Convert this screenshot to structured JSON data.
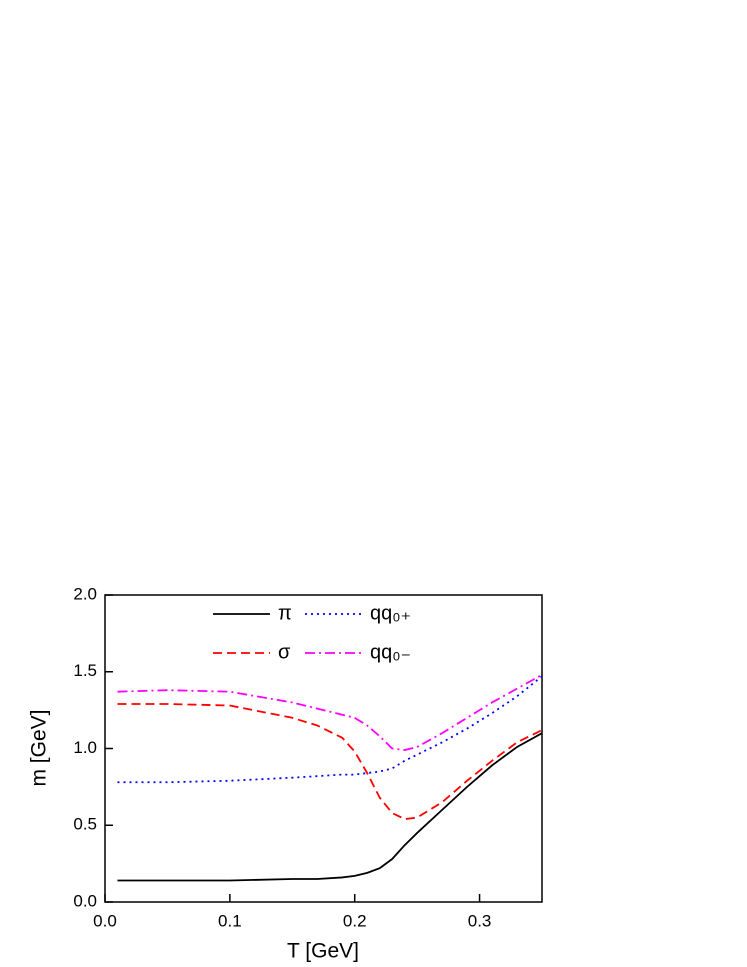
{
  "chart_data": {
    "type": "line",
    "xlabel": "T [GeV]",
    "ylabel": "m [GeV]",
    "x": [
      0.01,
      0.05,
      0.1,
      0.15,
      0.17,
      0.19,
      0.2,
      0.21,
      0.22,
      0.23,
      0.24,
      0.25,
      0.27,
      0.29,
      0.31,
      0.33,
      0.35
    ],
    "series": [
      {
        "name": "π",
        "color": "#000000",
        "dash": "solid",
        "values": [
          0.14,
          0.14,
          0.14,
          0.15,
          0.15,
          0.16,
          0.17,
          0.19,
          0.22,
          0.28,
          0.37,
          0.45,
          0.6,
          0.75,
          0.89,
          1.01,
          1.1
        ]
      },
      {
        "name": "σ",
        "color": "#ff0000",
        "dash": "dashed",
        "values": [
          1.29,
          1.29,
          1.28,
          1.2,
          1.15,
          1.07,
          0.98,
          0.84,
          0.68,
          0.58,
          0.54,
          0.55,
          0.65,
          0.79,
          0.92,
          1.04,
          1.12
        ]
      },
      {
        "name": "qq₀₊",
        "color": "#0000ff",
        "dash": "dotted",
        "values": [
          0.78,
          0.78,
          0.79,
          0.81,
          0.82,
          0.83,
          0.83,
          0.84,
          0.85,
          0.87,
          0.92,
          0.96,
          1.04,
          1.13,
          1.23,
          1.34,
          1.47
        ]
      },
      {
        "name": "qq₀₋",
        "color": "#ff00ff",
        "dash": "dashdot",
        "values": [
          1.37,
          1.38,
          1.37,
          1.3,
          1.26,
          1.22,
          1.2,
          1.15,
          1.08,
          1.0,
          0.99,
          1.01,
          1.1,
          1.2,
          1.3,
          1.39,
          1.48
        ]
      }
    ],
    "xlim": [
      0,
      0.35
    ],
    "xticks": [
      {
        "value": 0,
        "label": "0.0"
      },
      0.1,
      0.2,
      0.3
    ],
    "ylim": [
      0,
      2
    ],
    "yticks": [
      {
        "value": 0,
        "label": "0.0"
      },
      0.5,
      {
        "value": 1,
        "label": "1.0"
      },
      1.5,
      {
        "value": 2,
        "label": "2.0"
      }
    ],
    "legend": "top"
  }
}
